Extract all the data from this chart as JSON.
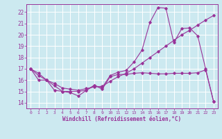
{
  "background_color": "#cce9f0",
  "grid_color": "#ffffff",
  "line_color": "#993399",
  "xlabel": "Windchill (Refroidissement éolien,°C)",
  "ylim": [
    13.5,
    22.7
  ],
  "xlim": [
    -0.5,
    23.5
  ],
  "yticks": [
    14,
    15,
    16,
    17,
    18,
    19,
    20,
    21,
    22
  ],
  "xticks": [
    0,
    1,
    2,
    3,
    4,
    5,
    6,
    7,
    8,
    9,
    10,
    11,
    12,
    13,
    14,
    15,
    16,
    17,
    18,
    19,
    20,
    21,
    22,
    23
  ],
  "line1_x": [
    0,
    1,
    2,
    3,
    4,
    5,
    6,
    7,
    8,
    9,
    10,
    11,
    12,
    13,
    14,
    15,
    16,
    17,
    18,
    19,
    20,
    21,
    22,
    23
  ],
  "line1_y": [
    17.0,
    16.6,
    16.0,
    15.1,
    15.0,
    14.9,
    14.6,
    15.1,
    15.55,
    15.2,
    16.3,
    16.5,
    16.5,
    16.6,
    16.65,
    16.6,
    16.55,
    16.55,
    16.6,
    16.6,
    16.6,
    16.65,
    16.9,
    14.1
  ],
  "line2_x": [
    0,
    1,
    2,
    3,
    4,
    5,
    6,
    7,
    8,
    9,
    10,
    11,
    12,
    13,
    14,
    15,
    16,
    17,
    18,
    19,
    20,
    21,
    22,
    23
  ],
  "line2_y": [
    17.0,
    16.0,
    16.0,
    15.5,
    15.0,
    15.0,
    15.0,
    15.1,
    15.5,
    15.35,
    16.4,
    16.7,
    16.85,
    17.6,
    18.65,
    21.1,
    22.4,
    22.35,
    19.3,
    20.55,
    20.6,
    19.9,
    17.0,
    14.1
  ],
  "line3_x": [
    0,
    1,
    2,
    3,
    4,
    5,
    6,
    7,
    8,
    9,
    10,
    11,
    12,
    13,
    14,
    15,
    16,
    17,
    18,
    19,
    20,
    21,
    22,
    23
  ],
  "line3_y": [
    17.0,
    16.4,
    16.0,
    15.7,
    15.3,
    15.2,
    15.1,
    15.25,
    15.4,
    15.45,
    15.9,
    16.3,
    16.6,
    17.0,
    17.5,
    18.0,
    18.5,
    19.0,
    19.5,
    20.0,
    20.4,
    20.85,
    21.3,
    21.7
  ]
}
